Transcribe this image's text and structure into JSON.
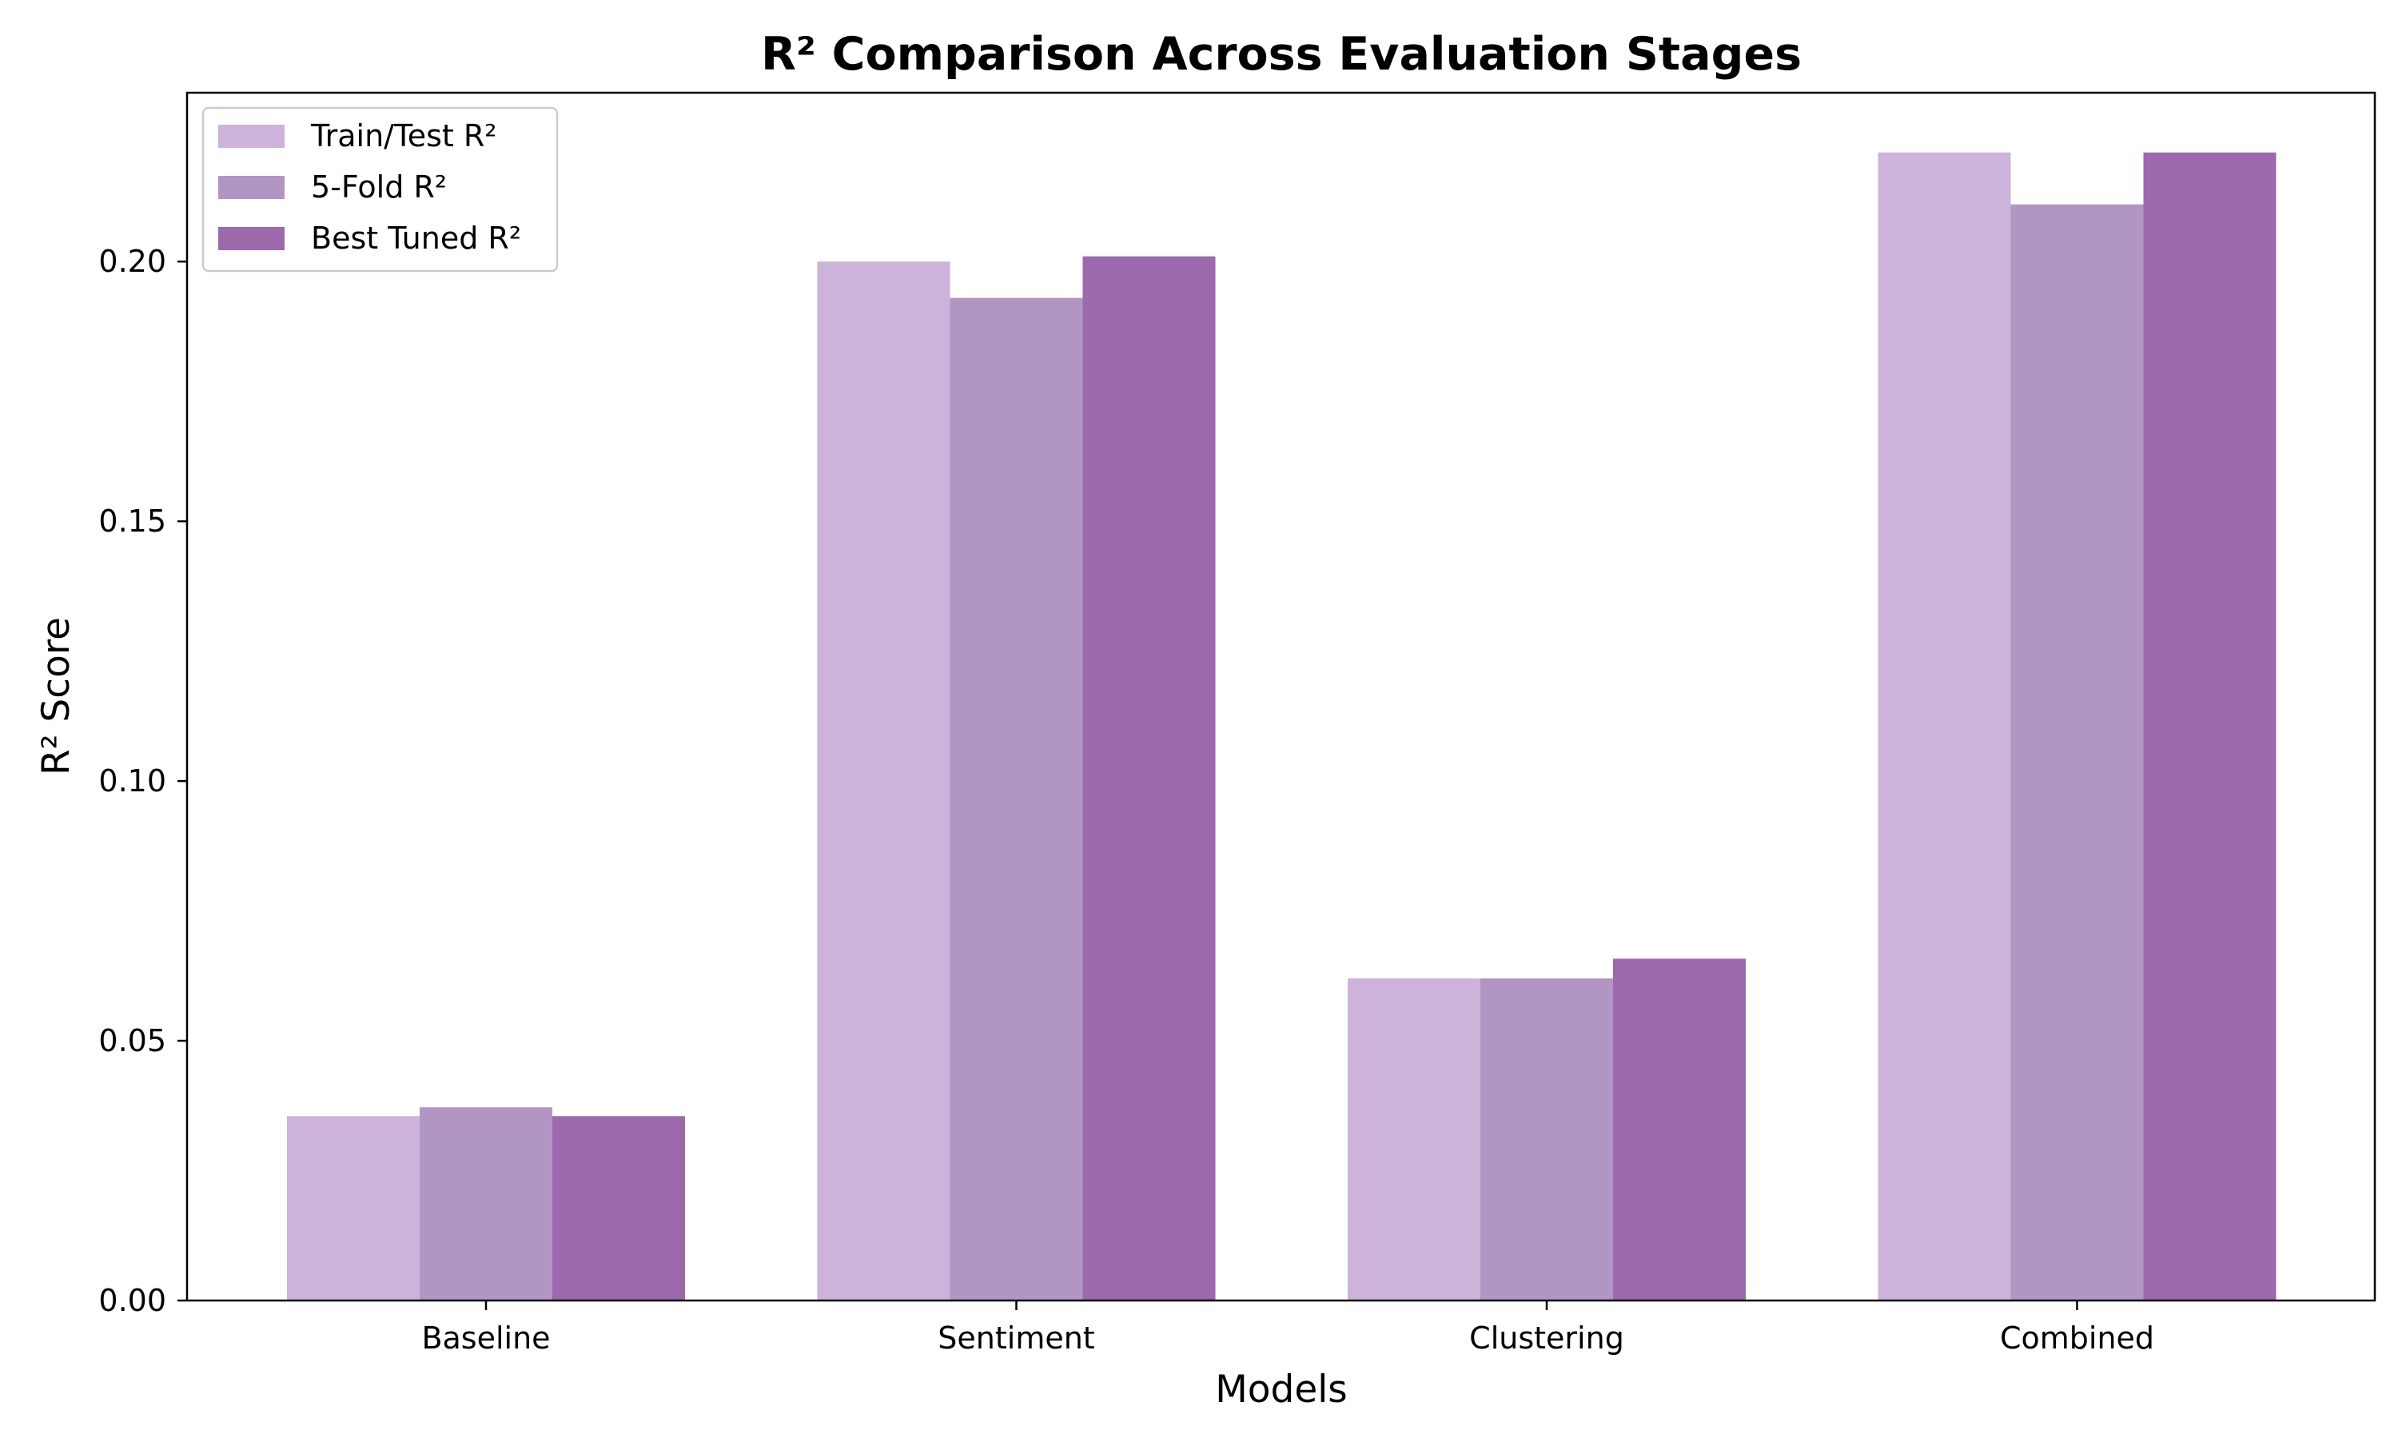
{
  "chart_data": {
    "type": "bar",
    "title": "R² Comparison Across Evaluation Stages",
    "xlabel": "Models",
    "ylabel": "R² Score",
    "categories": [
      "Baseline",
      "Sentiment",
      "Clustering",
      "Combined"
    ],
    "series": [
      {
        "name": "Train/Test R²",
        "color": "#cdb3d9",
        "values": [
          0.0355,
          0.2,
          0.062,
          0.221
        ]
      },
      {
        "name": "5-Fold R²",
        "color": "#b196c4",
        "values": [
          0.0372,
          0.193,
          0.062,
          0.211
        ]
      },
      {
        "name": "Best Tuned R²",
        "color": "#9c69ac",
        "values": [
          0.0355,
          0.201,
          0.0658,
          0.221
        ]
      }
    ],
    "ylim": [
      0,
      0.2325
    ],
    "yticks": [
      0.0,
      0.05,
      0.1,
      0.15,
      0.2
    ],
    "ytick_labels": [
      "0.00",
      "0.05",
      "0.10",
      "0.15",
      "0.20"
    ],
    "grid": false,
    "legend_position": "upper left"
  }
}
